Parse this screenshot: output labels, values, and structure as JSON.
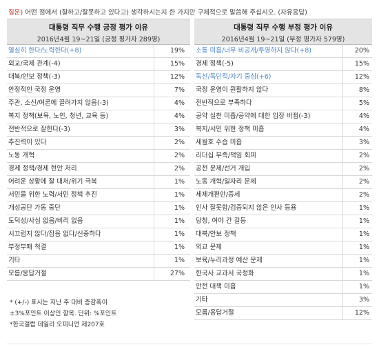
{
  "question": {
    "tag": "질문)",
    "text": " 어떤 점에서 (잘하고/잘못하고 있다고) 생각하시는지 한 가지만 구체적으로 말씀해 주십시오. (자유응답)"
  },
  "positive": {
    "title": "대통령 직무 수행 긍정 평가 이유",
    "subtitle": "2016년4월 19~21일 (긍정 평가자 289명)",
    "rows": [
      {
        "label": "열심히 한다/노력한다(+8)",
        "value": "19%",
        "highlight": true
      },
      {
        "label": "외교/국제 관계(-4)",
        "value": "15%",
        "highlight": false
      },
      {
        "label": "대북/안보 정책(-3)",
        "value": "12%",
        "highlight": false
      },
      {
        "label": "안정적인 국정 운영",
        "value": "7%",
        "highlight": false
      },
      {
        "label": "주관, 소신/여론에 끌려가지 않음(-3)",
        "value": "4%",
        "highlight": false
      },
      {
        "label": "복지 정책(보육, 노인, 청년, 교육 등)",
        "value": "4%",
        "highlight": false
      },
      {
        "label": "전반적으로 잘한다(-3)",
        "value": "3%",
        "highlight": false
      },
      {
        "label": "추진력이 있다",
        "value": "2%",
        "highlight": false
      },
      {
        "label": "노동 개혁",
        "value": "2%",
        "highlight": false
      },
      {
        "label": "경제 정책/경제 현안 처리",
        "value": "2%",
        "highlight": false
      },
      {
        "label": "어려운 상황에 잘 대처/위기 극복",
        "value": "1%",
        "highlight": false
      },
      {
        "label": "서민을 위한 노력/서민 정책 추진",
        "value": "1%",
        "highlight": false
      },
      {
        "label": "개성공단 가동 중단",
        "value": "1%",
        "highlight": false
      },
      {
        "label": "도덕성/사심 없음/비리 없음",
        "value": "1%",
        "highlight": false
      },
      {
        "label": "시끄럽지 않다/잡음 없다/신중하다",
        "value": "1%",
        "highlight": false
      },
      {
        "label": "부정부패 척결",
        "value": "1%",
        "highlight": false
      },
      {
        "label": "기타",
        "value": "1%",
        "highlight": false
      },
      {
        "label": "모름/응답거절",
        "value": "27%",
        "highlight": false
      }
    ]
  },
  "negative": {
    "title": "대통령 직무 수행 부정 평가 이유",
    "subtitle": "2016년4월 19~21일 (부정 평가자 579명)",
    "rows": [
      {
        "label": "소통 미흡/너무 비공개/투명하지 않다(+8)",
        "value": "20%",
        "highlight": true
      },
      {
        "label": "경제 정책(-5)",
        "value": "15%",
        "highlight": false
      },
      {
        "label": "독선/독단적/자기 중심(+6)",
        "value": "12%",
        "highlight": true
      },
      {
        "label": "국정 운영이 원활하지 않다",
        "value": "8%",
        "highlight": false
      },
      {
        "label": "전반적으로 부족하다",
        "value": "5%",
        "highlight": false
      },
      {
        "label": "공약 실천 미흡/공약에 대한 입장 바뀜(-3)",
        "value": "4%",
        "highlight": false
      },
      {
        "label": "복지/서민 위한 정책 미흡",
        "value": "4%",
        "highlight": false
      },
      {
        "label": "세월호 수습 미흡",
        "value": "3%",
        "highlight": false
      },
      {
        "label": "리더십 부족/책임 회피",
        "value": "2%",
        "highlight": false
      },
      {
        "label": "공천 문제/선거 개입",
        "value": "2%",
        "highlight": false
      },
      {
        "label": "노동 개혁/일자리 문제",
        "value": "2%",
        "highlight": false
      },
      {
        "label": "세제개편안/증세",
        "value": "2%",
        "highlight": false
      },
      {
        "label": "인사 잘못함/검증되지 않은 인사 등용",
        "value": "1%",
        "highlight": false
      },
      {
        "label": "당청, 여야 간 갈등",
        "value": "1%",
        "highlight": false
      },
      {
        "label": "대북/안보 정책",
        "value": "1%",
        "highlight": false
      },
      {
        "label": "외교 문제",
        "value": "1%",
        "highlight": false
      },
      {
        "label": "보육/누리과정 예산 문제",
        "value": "1%",
        "highlight": false
      },
      {
        "label": "한국사 교과서 국정화",
        "value": "1%",
        "highlight": false
      },
      {
        "label": "안전 대책 미흡",
        "value": "1%",
        "highlight": false
      },
      {
        "label": "기타",
        "value": "3%",
        "highlight": false
      },
      {
        "label": "모름/응답거절",
        "value": "12%",
        "highlight": false
      }
    ]
  },
  "notes": [
    "* (+/-) 표시는 지난 주 대비 증감폭이",
    "  ±3%포인트 이상인 항목. 단위: %포인트",
    "*한국갤럽 데일리 오피니언 제207호"
  ]
}
